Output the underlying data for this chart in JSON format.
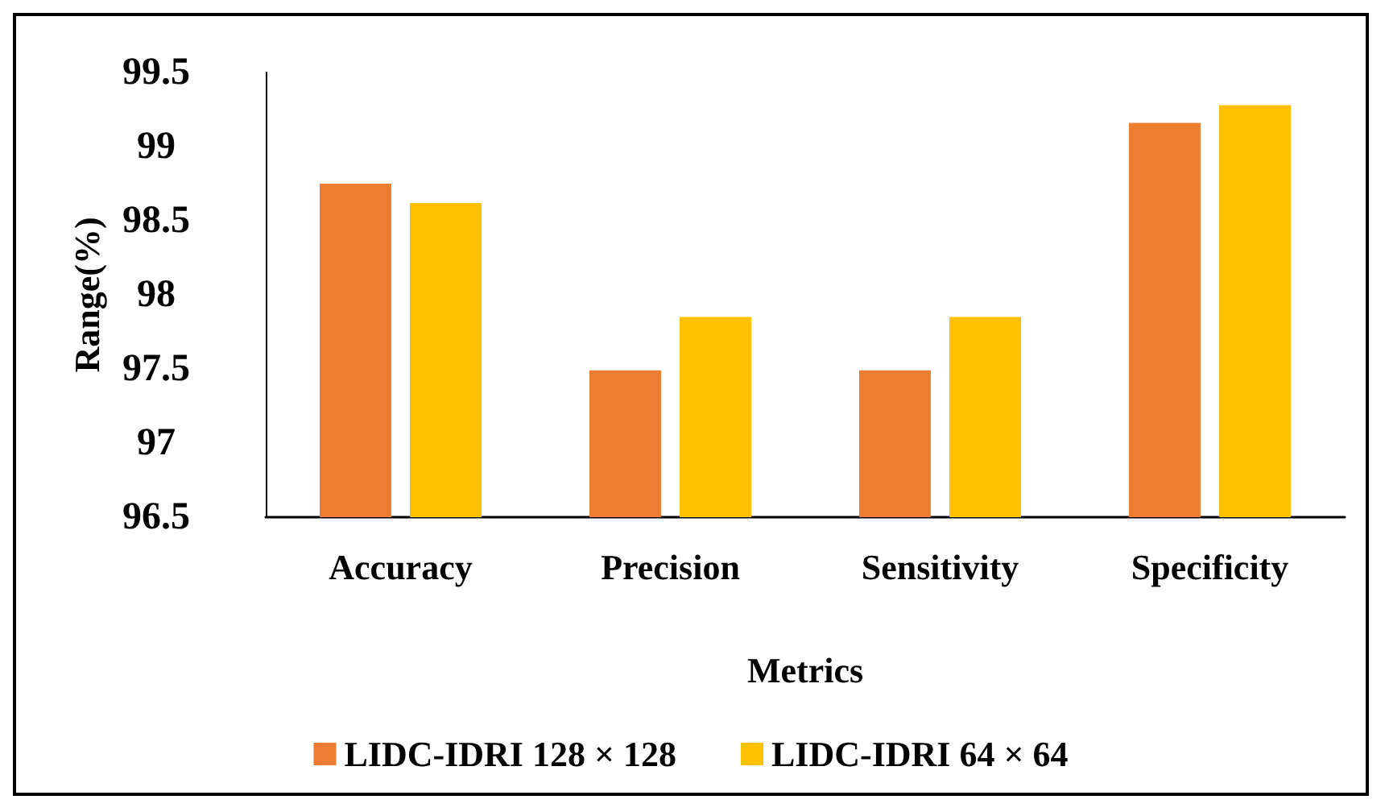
{
  "chart_data": {
    "type": "bar",
    "xlabel": "Metrics",
    "ylabel": "Range(%)",
    "categories": [
      "Accuracy",
      "Precision",
      "Sensitivity",
      "Specificity"
    ],
    "series": [
      {
        "name": "LIDC-IDRI 128 × 128",
        "color": "#ed7d31",
        "values": [
          98.75,
          97.49,
          97.49,
          99.16
        ]
      },
      {
        "name": "LIDC-IDRI 64 × 64",
        "color": "#ffc000",
        "values": [
          98.62,
          97.85,
          97.85,
          99.28
        ]
      }
    ],
    "ylim": [
      96.5,
      99.5
    ],
    "yticks": [
      96.5,
      97,
      97.5,
      98,
      98.5,
      99,
      99.5
    ],
    "grid": false,
    "legend": "bottom"
  }
}
